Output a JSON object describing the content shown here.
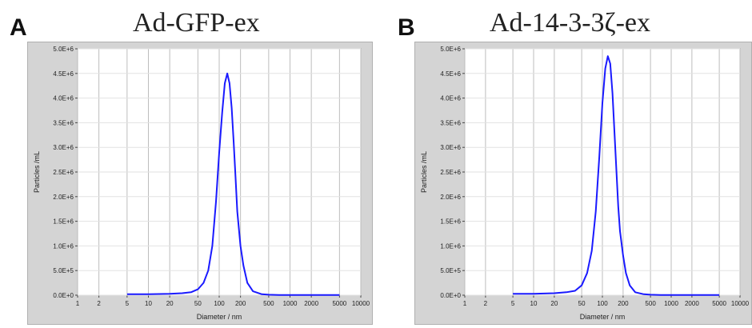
{
  "panels": [
    {
      "letter": "A",
      "title": "Ad-GFP-ex",
      "chart_data": {
        "type": "line",
        "title": "Ad-GFP-ex",
        "xlabel": "Diameter / nm",
        "ylabel": "Particles /mL",
        "x_scale": "log",
        "xlim": [
          1,
          10000
        ],
        "ylim": [
          0,
          5000000
        ],
        "x_ticks": [
          1,
          2,
          5,
          10,
          20,
          50,
          100,
          200,
          500,
          1000,
          2000,
          5000,
          10000
        ],
        "x_tick_labels": [
          "1",
          "2",
          "5",
          "10",
          "20",
          "50",
          "100",
          "200",
          "500",
          "1000",
          "2000",
          "5000",
          "10000"
        ],
        "y_ticks": [
          0,
          500000,
          1000000,
          1500000,
          2000000,
          2500000,
          3000000,
          3500000,
          4000000,
          4500000,
          5000000
        ],
        "y_tick_labels": [
          "0.0E+0",
          "5.0E+5",
          "1.0E+6",
          "1.5E+6",
          "2.0E+6",
          "2.5E+6",
          "3.0E+6",
          "3.5E+6",
          "4.0E+6",
          "4.5E+6",
          "5.0E+6"
        ],
        "grid": true,
        "line_color": "#1a1aff",
        "series": [
          {
            "x": [
              5,
              10,
              20,
              30,
              40,
              50,
              60,
              70,
              80,
              90,
              100,
              110,
              120,
              130,
              140,
              150,
              160,
              170,
              180,
              200,
              220,
              250,
              300,
              400,
              500,
              700,
              1000,
              2000,
              5000
            ],
            "y": [
              20000,
              20000,
              30000,
              40000,
              60000,
              120000,
              250000,
              500000,
              1000000,
              1900000,
              2900000,
              3700000,
              4300000,
              4500000,
              4300000,
              3800000,
              3100000,
              2400000,
              1700000,
              1000000,
              600000,
              250000,
              80000,
              20000,
              10000,
              5000,
              5000,
              5000,
              5000
            ]
          }
        ]
      }
    },
    {
      "letter": "B",
      "title": "Ad-14-3-3ζ-ex",
      "chart_data": {
        "type": "line",
        "title": "Ad-14-3-3ζ-ex",
        "xlabel": "Diameter / nm",
        "ylabel": "Particles /mL",
        "x_scale": "log",
        "xlim": [
          1,
          10000
        ],
        "ylim": [
          0,
          5000000
        ],
        "x_ticks": [
          1,
          2,
          5,
          10,
          20,
          50,
          100,
          200,
          500,
          1000,
          2000,
          5000,
          10000
        ],
        "x_tick_labels": [
          "1",
          "2",
          "5",
          "10",
          "20",
          "50",
          "100",
          "200",
          "500",
          "1000",
          "2000",
          "5000",
          "10000"
        ],
        "y_ticks": [
          0,
          500000,
          1000000,
          1500000,
          2000000,
          2500000,
          3000000,
          3500000,
          4000000,
          4500000,
          5000000
        ],
        "y_tick_labels": [
          "0.0E+0",
          "5.0E+5",
          "1.0E+6",
          "1.5E+6",
          "2.0E+6",
          "2.5E+6",
          "3.0E+6",
          "3.5E+6",
          "4.0E+6",
          "4.5E+6",
          "5.0E+6"
        ],
        "grid": true,
        "line_color": "#1a1aff",
        "series": [
          {
            "x": [
              5,
              10,
              20,
              30,
              40,
              50,
              60,
              70,
              80,
              90,
              100,
              110,
              120,
              130,
              140,
              150,
              160,
              170,
              180,
              200,
              220,
              250,
              300,
              400,
              500,
              700,
              1000,
              2000,
              5000
            ],
            "y": [
              30000,
              30000,
              40000,
              60000,
              90000,
              200000,
              450000,
              900000,
              1700000,
              2800000,
              3900000,
              4600000,
              4850000,
              4700000,
              4100000,
              3300000,
              2500000,
              1800000,
              1300000,
              800000,
              450000,
              200000,
              60000,
              20000,
              10000,
              5000,
              5000,
              5000,
              5000
            ]
          }
        ]
      }
    }
  ]
}
